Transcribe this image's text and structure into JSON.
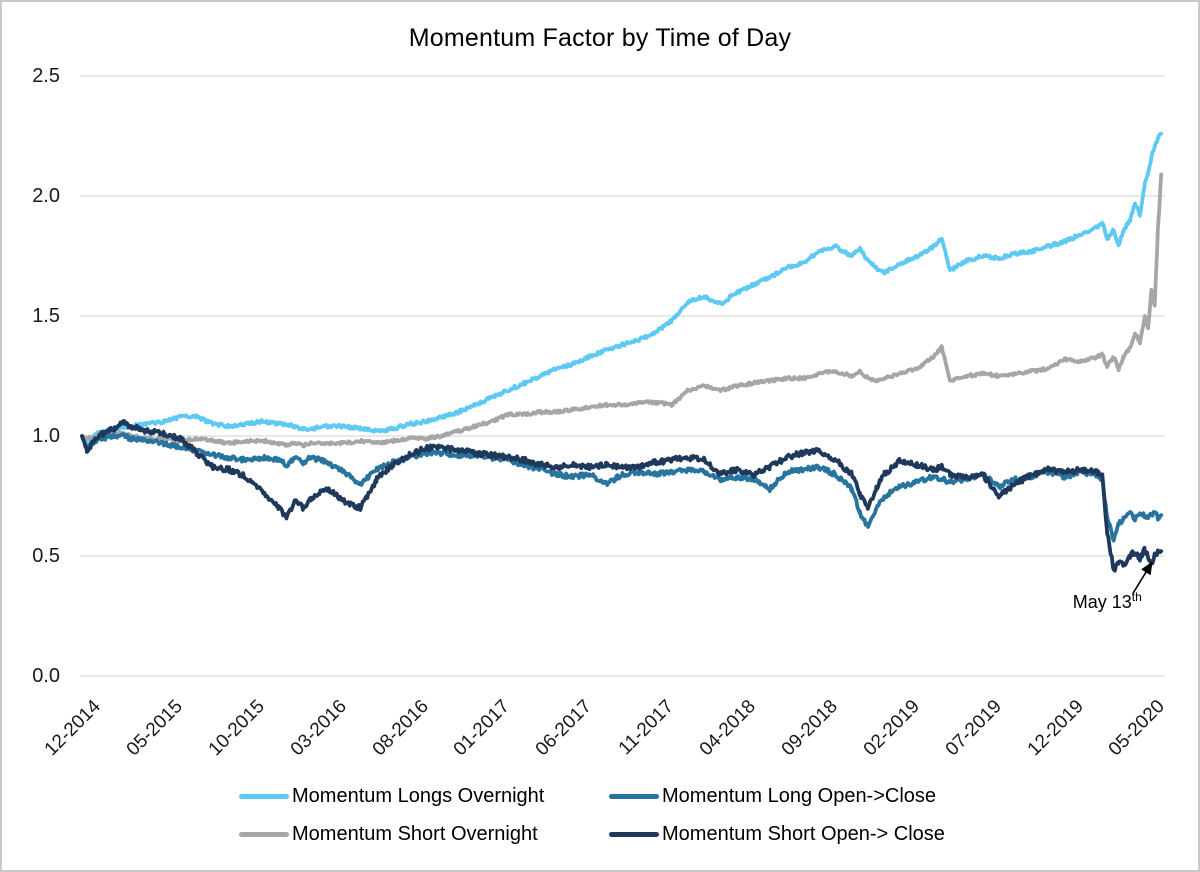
{
  "title": "Momentum Factor by Time of Day",
  "legend_order": [
    0,
    2,
    1,
    3
  ],
  "chart_data": {
    "type": "line",
    "title": "Momentum Factor by Time of Day",
    "xlabel": "",
    "ylabel": "",
    "ylim": [
      0.0,
      2.5
    ],
    "y_ticks": [
      0.0,
      0.5,
      1.0,
      1.5,
      2.0,
      2.5
    ],
    "grid": "horizontal",
    "legend_position": "bottom",
    "x_unit": "months since 2014-12",
    "x_tick_positions": [
      0,
      5,
      10,
      15,
      20,
      25,
      30,
      35,
      40,
      45,
      50,
      55,
      60,
      65
    ],
    "x_tick_labels": [
      "12-2014",
      "05-2015",
      "10-2015",
      "03-2016",
      "08-2016",
      "01-2017",
      "06-2017",
      "11-2017",
      "04-2018",
      "09-2018",
      "02-2019",
      "07-2019",
      "12-2019",
      "05-2020"
    ],
    "x": [
      0,
      0.3,
      1,
      2,
      2.5,
      3,
      4,
      5,
      6,
      7,
      8,
      9,
      10,
      11,
      12,
      12.5,
      13,
      13.5,
      14,
      15,
      16,
      17,
      18,
      19,
      20,
      21,
      22,
      23,
      24,
      25,
      26,
      27,
      28,
      29,
      30,
      31,
      32,
      33,
      34,
      35,
      36,
      37,
      38,
      39,
      40,
      41,
      42,
      43,
      44,
      45,
      46,
      47,
      47.5,
      48,
      48.5,
      49,
      50,
      51,
      52,
      52.5,
      53,
      54,
      55,
      56,
      57,
      58,
      59,
      60,
      61,
      62,
      62.3,
      62.6,
      63,
      63.3,
      63.6,
      64,
      64.3,
      64.6,
      64.9,
      65.1,
      65.3,
      65.5,
      65.7,
      65.9
    ],
    "series": [
      {
        "name": "Momentum Longs Overnight",
        "color": "#5EC9F2",
        "noise": 0.007,
        "values": [
          1.0,
          0.98,
          1.01,
          1.03,
          1.04,
          1.04,
          1.05,
          1.06,
          1.08,
          1.08,
          1.05,
          1.04,
          1.05,
          1.06,
          1.05,
          1.05,
          1.04,
          1.03,
          1.03,
          1.04,
          1.04,
          1.03,
          1.02,
          1.03,
          1.05,
          1.06,
          1.08,
          1.1,
          1.13,
          1.16,
          1.19,
          1.22,
          1.25,
          1.28,
          1.3,
          1.33,
          1.36,
          1.38,
          1.4,
          1.43,
          1.48,
          1.56,
          1.58,
          1.55,
          1.6,
          1.63,
          1.66,
          1.7,
          1.72,
          1.77,
          1.79,
          1.75,
          1.78,
          1.73,
          1.7,
          1.68,
          1.72,
          1.75,
          1.79,
          1.82,
          1.69,
          1.73,
          1.75,
          1.74,
          1.76,
          1.77,
          1.79,
          1.81,
          1.84,
          1.87,
          1.89,
          1.82,
          1.86,
          1.79,
          1.86,
          1.9,
          1.97,
          1.92,
          2.05,
          2.1,
          2.16,
          2.21,
          2.24,
          2.26
        ]
      },
      {
        "name": "Momentum Short Overnight",
        "color": "#A6A6A6",
        "noise": 0.006,
        "values": [
          1.0,
          0.99,
          1.0,
          1.01,
          1.01,
          1.0,
          0.99,
          0.99,
          0.98,
          0.99,
          0.98,
          0.97,
          0.98,
          0.98,
          0.97,
          0.96,
          0.97,
          0.96,
          0.97,
          0.97,
          0.97,
          0.98,
          0.97,
          0.98,
          0.99,
          0.99,
          1.0,
          1.02,
          1.04,
          1.06,
          1.09,
          1.09,
          1.1,
          1.1,
          1.11,
          1.12,
          1.13,
          1.13,
          1.14,
          1.14,
          1.13,
          1.19,
          1.21,
          1.19,
          1.21,
          1.22,
          1.23,
          1.24,
          1.24,
          1.26,
          1.27,
          1.25,
          1.27,
          1.24,
          1.23,
          1.24,
          1.26,
          1.28,
          1.33,
          1.37,
          1.23,
          1.25,
          1.26,
          1.25,
          1.26,
          1.27,
          1.28,
          1.32,
          1.31,
          1.33,
          1.34,
          1.29,
          1.33,
          1.28,
          1.33,
          1.37,
          1.43,
          1.39,
          1.5,
          1.45,
          1.61,
          1.54,
          1.86,
          2.09
        ]
      },
      {
        "name": "Momentum Long Open->Close",
        "color": "#27749F",
        "noise": 0.01,
        "values": [
          1.0,
          0.95,
          0.99,
          1.0,
          1.0,
          0.99,
          0.98,
          0.97,
          0.95,
          0.94,
          0.92,
          0.91,
          0.9,
          0.91,
          0.9,
          0.88,
          0.91,
          0.89,
          0.91,
          0.89,
          0.85,
          0.8,
          0.86,
          0.89,
          0.91,
          0.93,
          0.93,
          0.92,
          0.92,
          0.91,
          0.9,
          0.88,
          0.86,
          0.84,
          0.83,
          0.84,
          0.8,
          0.84,
          0.85,
          0.84,
          0.85,
          0.86,
          0.85,
          0.82,
          0.83,
          0.82,
          0.78,
          0.85,
          0.86,
          0.87,
          0.84,
          0.78,
          0.68,
          0.62,
          0.7,
          0.75,
          0.79,
          0.81,
          0.83,
          0.82,
          0.81,
          0.82,
          0.84,
          0.79,
          0.82,
          0.83,
          0.85,
          0.83,
          0.85,
          0.84,
          0.82,
          0.66,
          0.57,
          0.63,
          0.66,
          0.68,
          0.65,
          0.68,
          0.67,
          0.66,
          0.67,
          0.68,
          0.66,
          0.67
        ]
      },
      {
        "name": "Momentum Short Open-> Close",
        "color": "#1F395C",
        "noise": 0.011,
        "values": [
          1.0,
          0.94,
          1.0,
          1.03,
          1.06,
          1.04,
          1.02,
          1.01,
          0.99,
          0.93,
          0.87,
          0.86,
          0.83,
          0.77,
          0.7,
          0.66,
          0.73,
          0.7,
          0.74,
          0.78,
          0.73,
          0.7,
          0.82,
          0.88,
          0.92,
          0.95,
          0.95,
          0.94,
          0.93,
          0.92,
          0.91,
          0.9,
          0.88,
          0.87,
          0.88,
          0.87,
          0.88,
          0.87,
          0.87,
          0.89,
          0.9,
          0.91,
          0.9,
          0.84,
          0.86,
          0.84,
          0.87,
          0.91,
          0.93,
          0.94,
          0.9,
          0.84,
          0.76,
          0.7,
          0.78,
          0.84,
          0.9,
          0.88,
          0.86,
          0.87,
          0.84,
          0.83,
          0.84,
          0.75,
          0.8,
          0.84,
          0.86,
          0.85,
          0.86,
          0.85,
          0.84,
          0.6,
          0.44,
          0.48,
          0.46,
          0.5,
          0.52,
          0.49,
          0.53,
          0.5,
          0.46,
          0.5,
          0.52,
          0.52
        ]
      }
    ],
    "annotation": {
      "text": "May 13",
      "sup": "th",
      "x": 65.32,
      "y": 0.455
    }
  },
  "colors": {
    "gridline": "#D9D9D9",
    "axis_text": "#1a1a1a",
    "title_text": "#000000",
    "annotation_arrow": "#000000"
  }
}
